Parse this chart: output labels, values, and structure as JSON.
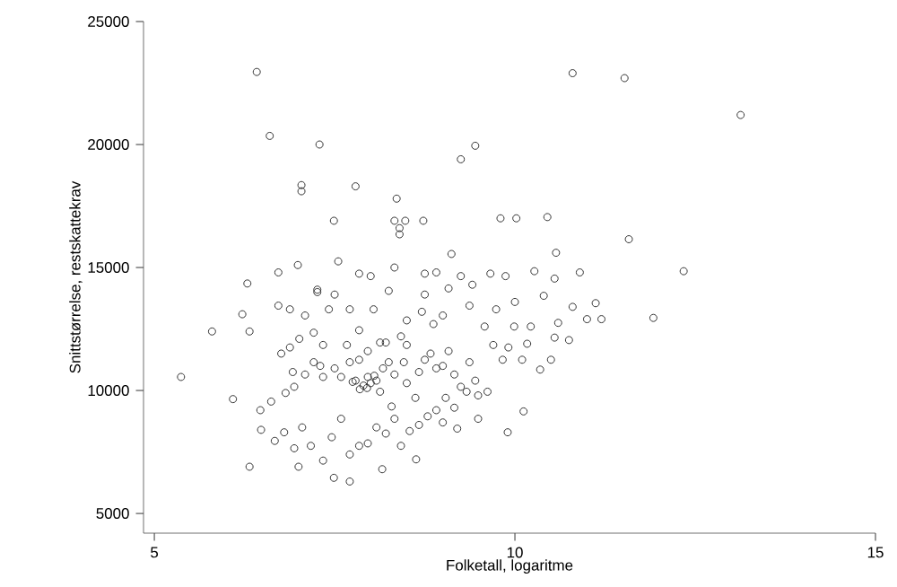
{
  "chart_data": {
    "type": "scatter",
    "xlabel": "Folketall, logaritme",
    "ylabel": "Snittstørrelse, restskattekrav",
    "xlim": [
      4.85,
      15
    ],
    "ylim": [
      4200,
      25000
    ],
    "xticks": [
      5,
      10,
      15
    ],
    "yticks": [
      5000,
      10000,
      15000,
      20000,
      25000
    ],
    "marker": "circle",
    "color": "#333333",
    "x": [
      6.42,
      6.6,
      7.29,
      7.04,
      7.04,
      7.79,
      9.45,
      9.25,
      8.36,
      8.33,
      8.48,
      8.73,
      7.49,
      8.4,
      8.4,
      10.8,
      11.52,
      13.13,
      9.8,
      10.02,
      10.45,
      11.58,
      12.34,
      11.92,
      10.9,
      5.37,
      5.8,
      6.09,
      6.29,
      6.22,
      6.32,
      6.72,
      6.32,
      7.0,
      7.49,
      7.71,
      8.16,
      8.63,
      6.99,
      7.26,
      9.9,
      10.12,
      10.27,
      10.55,
      10.0,
      10.4,
      10.8,
      11.12,
      11.0,
      11.2,
      10.6,
      10.22,
      10.75,
      10.55,
      10.17,
      10.1,
      10.5,
      10.35,
      10.57,
      6.47,
      6.62,
      6.82,
      6.94,
      6.92,
      7.09,
      7.21,
      7.3,
      7.34,
      7.5,
      7.59,
      7.71,
      7.84,
      7.96,
      8.0,
      8.08,
      8.17,
      8.25,
      8.33,
      8.46,
      8.5,
      8.67,
      8.75,
      8.83,
      8.91,
      9.0,
      9.08,
      9.16,
      9.25,
      9.37,
      9.45,
      9.49,
      9.62,
      9.7,
      9.83,
      9.91,
      6.48,
      6.67,
      6.8,
      6.94,
      7.05,
      7.17,
      7.34,
      7.46,
      7.59,
      7.71,
      7.84,
      7.96,
      8.08,
      8.21,
      8.33,
      8.42,
      8.54,
      8.67,
      8.79,
      8.91,
      9.04,
      9.16,
      9.33,
      9.49,
      6.76,
      6.88,
      7.01,
      7.21,
      7.34,
      7.42,
      7.71,
      7.84,
      8.04,
      8.21,
      8.25,
      8.42,
      8.5,
      8.71,
      8.75,
      8.87,
      9.0,
      9.08,
      9.25,
      9.37,
      9.58,
      9.74,
      9.87,
      9.99,
      6.72,
      6.88,
      7.26,
      7.5,
      7.55,
      7.84,
      8.0,
      8.33,
      8.75,
      8.91,
      9.12,
      9.41,
      9.66,
      7.09,
      7.67,
      7.79,
      8.13,
      8.29,
      8.62,
      9.0,
      9.2,
      7.96,
      8.13,
      8.5,
      7.9,
      7.95,
      7.85,
      8.05,
      7.75
    ],
    "values": [
      22950,
      20350,
      20000,
      18350,
      18100,
      18300,
      19950,
      19400,
      17800,
      16900,
      16900,
      16900,
      16900,
      16600,
      16350,
      22900,
      22700,
      21200,
      17000,
      17000,
      17050,
      16150,
      14850,
      12950,
      14800,
      10550,
      12400,
      9650,
      14350,
      13100,
      12400,
      14800,
      6900,
      6900,
      6450,
      6300,
      6800,
      7200,
      15100,
      14100,
      8300,
      9150,
      14850,
      14550,
      13600,
      13850,
      13400,
      13550,
      12900,
      12900,
      12750,
      12600,
      12050,
      12150,
      11900,
      11250,
      11250,
      10850,
      15600,
      9200,
      9550,
      9900,
      10150,
      10750,
      10650,
      11150,
      11000,
      10550,
      10900,
      10550,
      11150,
      11250,
      10550,
      10300,
      10400,
      10900,
      11150,
      10650,
      11150,
      10300,
      10750,
      11250,
      11500,
      10900,
      11000,
      11600,
      10650,
      10150,
      11150,
      10400,
      9800,
      9950,
      11850,
      11250,
      11750,
      8400,
      7950,
      8300,
      7650,
      8500,
      7750,
      7150,
      8100,
      8850,
      7400,
      7750,
      7850,
      8500,
      8250,
      8850,
      7750,
      8350,
      8600,
      8950,
      9200,
      9700,
      9300,
      9950,
      8850,
      11500,
      11750,
      12100,
      12350,
      11850,
      13300,
      13300,
      12450,
      13300,
      11950,
      14050,
      12200,
      12850,
      13200,
      13900,
      12700,
      13050,
      14150,
      14650,
      13450,
      12600,
      13300,
      14650,
      12600,
      13450,
      13300,
      14000,
      13900,
      15250,
      14750,
      14650,
      15000,
      14750,
      14800,
      15550,
      14300,
      14750,
      13050,
      11850,
      10400,
      9950,
      9350,
      9700,
      8700,
      8450,
      11600,
      11950,
      11850,
      10200,
      10100,
      10050,
      10600,
      10350
    ]
  }
}
